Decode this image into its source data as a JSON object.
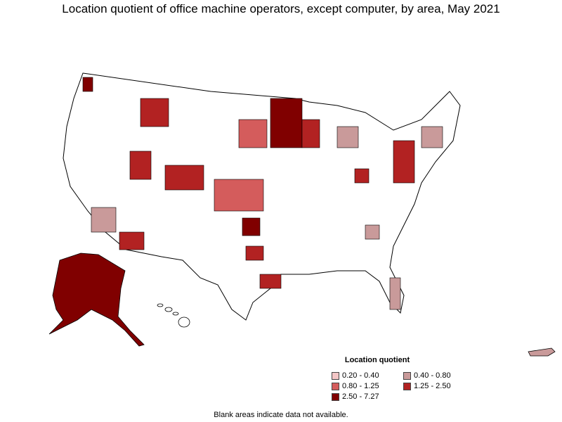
{
  "title": "Location quotient of office machine operators, except computer, by area, May 2021",
  "legend": {
    "title": "Location quotient",
    "items": [
      {
        "label": "0.20 - 0.40",
        "color": "#f4c6c6"
      },
      {
        "label": "0.40 - 0.80",
        "color": "#c99a9a"
      },
      {
        "label": "0.80 - 1.25",
        "color": "#d45c5c"
      },
      {
        "label": "1.25 - 2.50",
        "color": "#b22222"
      },
      {
        "label": "2.50 - 7.27",
        "color": "#800000"
      }
    ]
  },
  "footnote": "Blank areas indicate data not available.",
  "colors": {
    "outline": "#000000",
    "blank": "#ffffff",
    "c040_080": "#c99a9a",
    "c080_125": "#d45c5c",
    "c125_250": "#b22222",
    "c250_727": "#800000",
    "c020_040": "#f4c6c6"
  }
}
